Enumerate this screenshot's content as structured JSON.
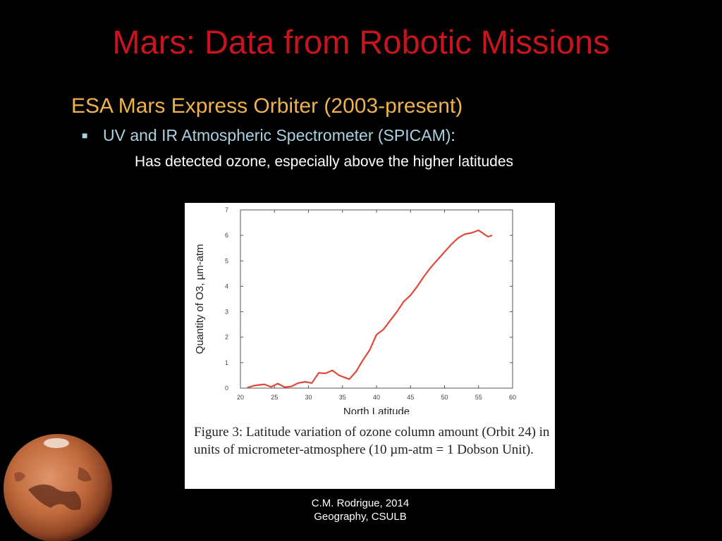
{
  "slide": {
    "title": "Mars: Data from Robotic Missions",
    "heading": "ESA Mars Express Orbiter (2003-present)",
    "bullet": "UV and IR Atmospheric Spectrometer (SPICAM)",
    "bullet_suffix": ":",
    "detail": "Has detected ozone, especially above the higher latitudes",
    "credit_line1": "C.M. Rodrigue, 2014",
    "credit_line2": "Geography, CSULB"
  },
  "figure": {
    "caption": "Figure 3: Latitude variation of ozone column amount (Orbit 24) in units of micrometer-atmosphere (10 µm-atm = 1 Dobson Unit)."
  },
  "colors": {
    "title": "#c8141c",
    "heading": "#f0b24c",
    "bullet": "#a9d2e2",
    "line": "#e0483a"
  },
  "chart_data": {
    "type": "line",
    "xlabel": "North Latitude",
    "ylabel": "Quantity of O3, µm-atm",
    "xlim": [
      20,
      60
    ],
    "ylim": [
      0,
      7
    ],
    "xticks": [
      20,
      25,
      30,
      35,
      40,
      45,
      50,
      55,
      60
    ],
    "yticks": [
      0,
      1,
      2,
      3,
      4,
      5,
      6,
      7
    ],
    "series": [
      {
        "x": [
          21,
          22,
          23.5,
          24.5,
          25.5,
          26.5,
          27.5,
          28.5,
          29.5,
          30.5,
          31.5,
          32.5,
          33.5,
          34.5,
          35.3,
          36,
          37,
          38,
          39,
          40,
          41,
          42,
          43,
          44,
          45,
          46,
          47,
          48,
          49,
          50,
          51,
          52,
          53,
          54,
          55,
          55.8,
          56.4,
          57
        ],
        "y": [
          0.02,
          0.1,
          0.15,
          0.05,
          0.18,
          0.04,
          0.07,
          0.2,
          0.25,
          0.2,
          0.6,
          0.58,
          0.7,
          0.5,
          0.42,
          0.35,
          0.65,
          1.1,
          1.5,
          2.1,
          2.3,
          2.65,
          3.0,
          3.4,
          3.65,
          4.0,
          4.4,
          4.75,
          5.05,
          5.35,
          5.65,
          5.9,
          6.05,
          6.1,
          6.2,
          6.05,
          5.95,
          6.0
        ]
      }
    ]
  }
}
